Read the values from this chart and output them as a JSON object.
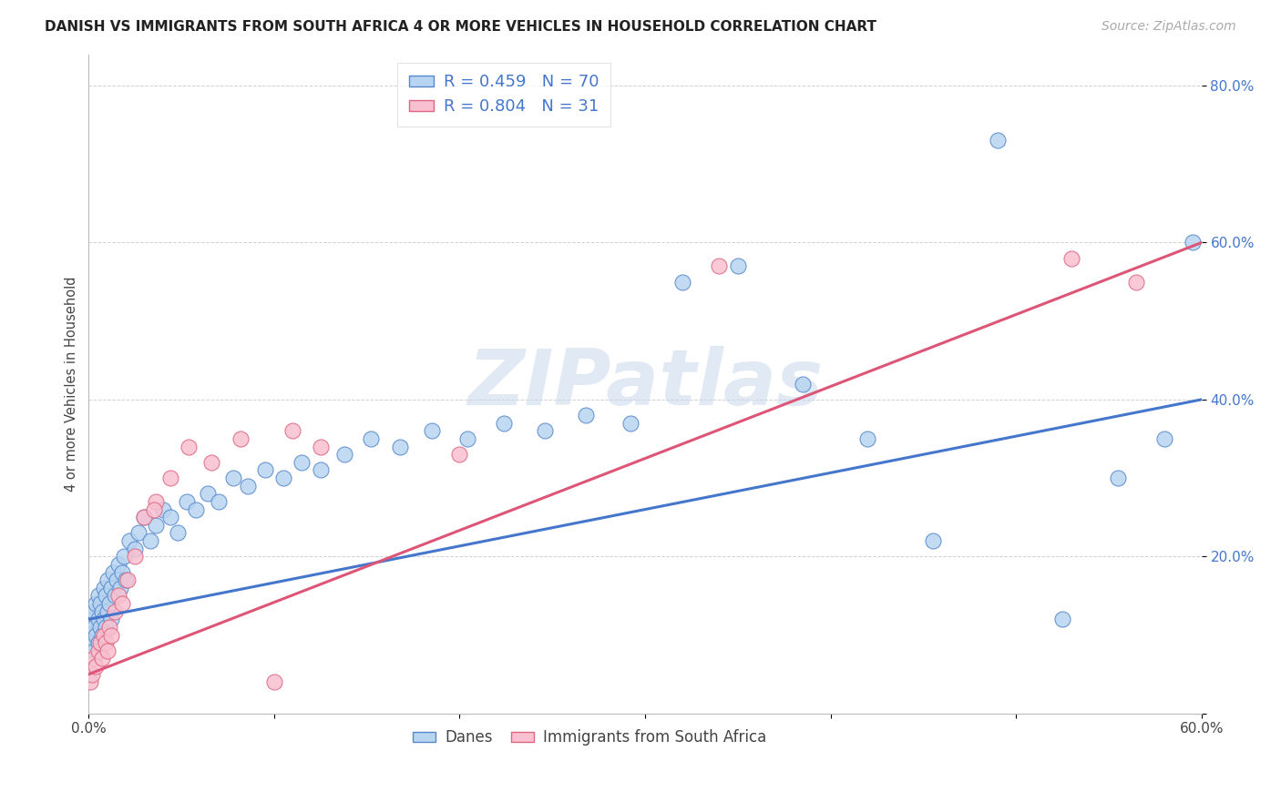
{
  "title": "DANISH VS IMMIGRANTS FROM SOUTH AFRICA 4 OR MORE VEHICLES IN HOUSEHOLD CORRELATION CHART",
  "source": "Source: ZipAtlas.com",
  "ylabel": "4 or more Vehicles in Household",
  "danes_R": 0.459,
  "danes_N": 70,
  "immigrants_R": 0.804,
  "immigrants_N": 31,
  "danes_color": "#b8d4f0",
  "danes_edge_color": "#5588cc",
  "danes_line_color": "#4477cc",
  "immigrants_color": "#f8c0d0",
  "immigrants_edge_color": "#dd6680",
  "immigrants_line_color": "#dd5577",
  "watermark": "ZIPatlas",
  "legend_label_danes": "Danes",
  "legend_label_immigrants": "Immigrants from South Africa",
  "xlim": [
    0.0,
    0.6
  ],
  "ylim": [
    0.0,
    0.84
  ],
  "ytick_color": "#4477cc",
  "danes_x": [
    0.001,
    0.002,
    0.002,
    0.003,
    0.003,
    0.003,
    0.004,
    0.004,
    0.005,
    0.005,
    0.005,
    0.006,
    0.006,
    0.007,
    0.007,
    0.008,
    0.008,
    0.009,
    0.009,
    0.01,
    0.01,
    0.011,
    0.012,
    0.012,
    0.013,
    0.014,
    0.015,
    0.016,
    0.017,
    0.018,
    0.019,
    0.02,
    0.022,
    0.025,
    0.027,
    0.03,
    0.033,
    0.036,
    0.04,
    0.044,
    0.048,
    0.053,
    0.058,
    0.064,
    0.07,
    0.078,
    0.086,
    0.095,
    0.105,
    0.115,
    0.125,
    0.138,
    0.152,
    0.168,
    0.185,
    0.204,
    0.224,
    0.246,
    0.268,
    0.292,
    0.32,
    0.35,
    0.385,
    0.42,
    0.455,
    0.49,
    0.525,
    0.555,
    0.58,
    0.595
  ],
  "danes_y": [
    0.1,
    0.09,
    0.12,
    0.08,
    0.11,
    0.13,
    0.1,
    0.14,
    0.09,
    0.12,
    0.15,
    0.11,
    0.14,
    0.1,
    0.13,
    0.12,
    0.16,
    0.11,
    0.15,
    0.13,
    0.17,
    0.14,
    0.16,
    0.12,
    0.18,
    0.15,
    0.17,
    0.19,
    0.16,
    0.18,
    0.2,
    0.17,
    0.22,
    0.21,
    0.23,
    0.25,
    0.22,
    0.24,
    0.26,
    0.25,
    0.23,
    0.27,
    0.26,
    0.28,
    0.27,
    0.3,
    0.29,
    0.31,
    0.3,
    0.32,
    0.31,
    0.33,
    0.35,
    0.34,
    0.36,
    0.35,
    0.37,
    0.36,
    0.38,
    0.37,
    0.55,
    0.57,
    0.42,
    0.35,
    0.22,
    0.73,
    0.12,
    0.3,
    0.35,
    0.6
  ],
  "immigrants_x": [
    0.001,
    0.002,
    0.003,
    0.004,
    0.005,
    0.006,
    0.007,
    0.008,
    0.009,
    0.01,
    0.011,
    0.012,
    0.014,
    0.016,
    0.018,
    0.021,
    0.025,
    0.03,
    0.036,
    0.044,
    0.054,
    0.066,
    0.082,
    0.1,
    0.035,
    0.11,
    0.125,
    0.2,
    0.34,
    0.53,
    0.565
  ],
  "immigrants_y": [
    0.04,
    0.05,
    0.07,
    0.06,
    0.08,
    0.09,
    0.07,
    0.1,
    0.09,
    0.08,
    0.11,
    0.1,
    0.13,
    0.15,
    0.14,
    0.17,
    0.2,
    0.25,
    0.27,
    0.3,
    0.34,
    0.32,
    0.35,
    0.04,
    0.26,
    0.36,
    0.34,
    0.33,
    0.57,
    0.58,
    0.55
  ]
}
